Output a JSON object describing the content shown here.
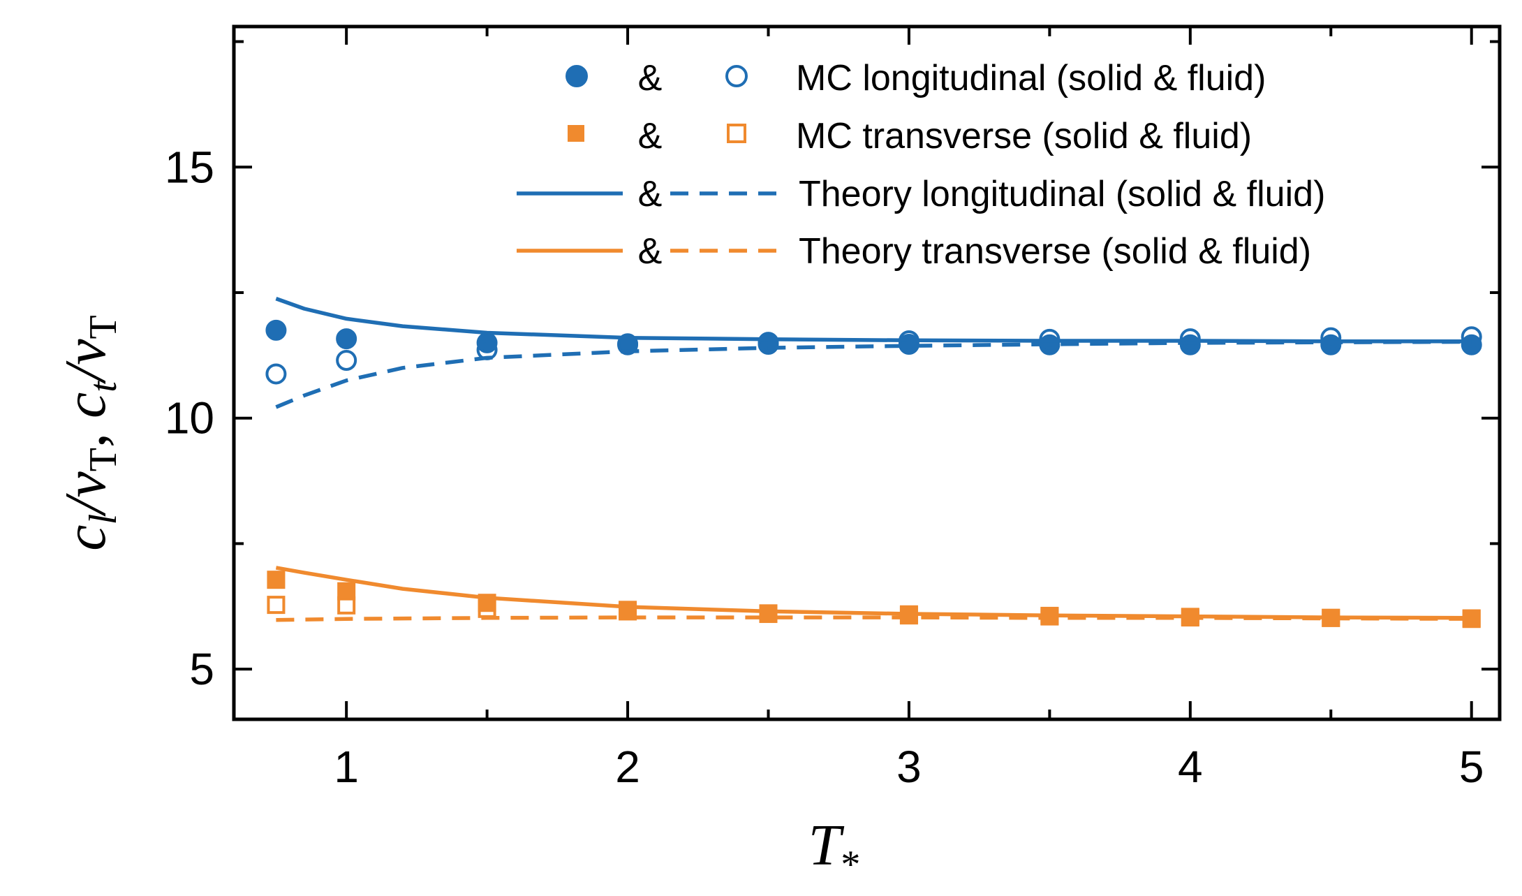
{
  "chart_data": {
    "type": "line",
    "xlabel": "T*",
    "ylabel": "c_l/v_T, c_t/v_T",
    "xlim": [
      0.6,
      5.1
    ],
    "ylim": [
      4.0,
      17.8
    ],
    "x_ticks": [
      1,
      2,
      3,
      4,
      5
    ],
    "x_tick_labels": [
      "1",
      "2",
      "3",
      "4",
      "5"
    ],
    "y_ticks": [
      5,
      10,
      15
    ],
    "y_tick_labels": [
      "5",
      "10",
      "15"
    ],
    "colors": {
      "longitudinal": "#1f6eb4",
      "transverse": "#f08a2e"
    },
    "legend": {
      "placement": "top-right",
      "separator": "&",
      "entries": [
        {
          "label": "MC longitudinal (solid & fluid)",
          "marker": "circle",
          "color": "#1f6eb4"
        },
        {
          "label": "MC transverse (solid & fluid)",
          "marker": "square",
          "color": "#f08a2e"
        },
        {
          "label": "Theory longitudinal (solid & fluid)",
          "marker": "line",
          "color": "#1f6eb4"
        },
        {
          "label": "Theory transverse (solid & fluid)",
          "marker": "line",
          "color": "#f08a2e"
        }
      ]
    },
    "series": [
      {
        "name": "MC longitudinal solid",
        "kind": "marker",
        "marker": "circle",
        "fill": "filled",
        "color": "#1f6eb4",
        "x": [
          0.75,
          1.0,
          1.5,
          2.0,
          2.5,
          3.0,
          3.5,
          4.0,
          4.5,
          5.0
        ],
        "y": [
          11.75,
          11.58,
          11.5,
          11.48,
          11.47,
          11.47,
          11.46,
          11.46,
          11.46,
          11.46
        ]
      },
      {
        "name": "MC longitudinal fluid",
        "kind": "marker",
        "marker": "circle",
        "fill": "open",
        "color": "#1f6eb4",
        "x": [
          0.75,
          1.0,
          1.5,
          2.0,
          2.5,
          3.0,
          3.5,
          4.0,
          4.5,
          5.0
        ],
        "y": [
          10.88,
          11.15,
          11.36,
          11.46,
          11.51,
          11.54,
          11.57,
          11.58,
          11.6,
          11.62
        ]
      },
      {
        "name": "MC transverse solid",
        "kind": "marker",
        "marker": "square",
        "fill": "filled",
        "color": "#f08a2e",
        "x": [
          0.75,
          1.0,
          1.5,
          2.0,
          2.5,
          3.0,
          3.5,
          4.0,
          4.5,
          5.0
        ],
        "y": [
          6.78,
          6.55,
          6.32,
          6.18,
          6.1,
          6.07,
          6.05,
          6.03,
          6.02,
          6.01
        ]
      },
      {
        "name": "MC transverse fluid",
        "kind": "marker",
        "marker": "square",
        "fill": "open",
        "color": "#f08a2e",
        "x": [
          0.75,
          1.0,
          1.5,
          2.0,
          2.5,
          3.0,
          3.5,
          4.0,
          4.5,
          5.0
        ],
        "y": [
          6.28,
          6.27,
          6.2,
          6.15,
          6.11,
          6.09,
          6.06,
          6.04,
          6.02,
          6.0
        ]
      },
      {
        "name": "Theory longitudinal solid",
        "kind": "line",
        "dash": "solid",
        "color": "#1f6eb4",
        "x": [
          0.75,
          0.85,
          1.0,
          1.2,
          1.5,
          2.0,
          2.5,
          3.0,
          3.5,
          4.0,
          4.5,
          5.0
        ],
        "y": [
          12.38,
          12.18,
          11.98,
          11.83,
          11.7,
          11.6,
          11.57,
          11.55,
          11.54,
          11.54,
          11.53,
          11.53
        ]
      },
      {
        "name": "Theory longitudinal fluid",
        "kind": "line",
        "dash": "dashed",
        "color": "#1f6eb4",
        "x": [
          0.75,
          0.85,
          1.0,
          1.2,
          1.5,
          2.0,
          2.5,
          3.0,
          3.5,
          4.0,
          4.5,
          5.0
        ],
        "y": [
          10.22,
          10.45,
          10.75,
          11.0,
          11.2,
          11.33,
          11.4,
          11.44,
          11.47,
          11.5,
          11.51,
          11.52
        ]
      },
      {
        "name": "Theory transverse solid",
        "kind": "line",
        "dash": "solid",
        "color": "#f08a2e",
        "x": [
          0.75,
          0.85,
          1.0,
          1.2,
          1.5,
          2.0,
          2.5,
          3.0,
          3.5,
          4.0,
          4.5,
          5.0
        ],
        "y": [
          7.02,
          6.92,
          6.78,
          6.6,
          6.42,
          6.24,
          6.15,
          6.1,
          6.07,
          6.05,
          6.03,
          6.02
        ]
      },
      {
        "name": "Theory transverse fluid",
        "kind": "line",
        "dash": "dashed",
        "color": "#f08a2e",
        "x": [
          0.75,
          1.0,
          1.5,
          2.0,
          2.5,
          3.0,
          3.5,
          4.0,
          4.5,
          5.0
        ],
        "y": [
          5.98,
          6.0,
          6.02,
          6.03,
          6.03,
          6.03,
          6.02,
          6.02,
          6.01,
          6.0
        ]
      }
    ]
  }
}
